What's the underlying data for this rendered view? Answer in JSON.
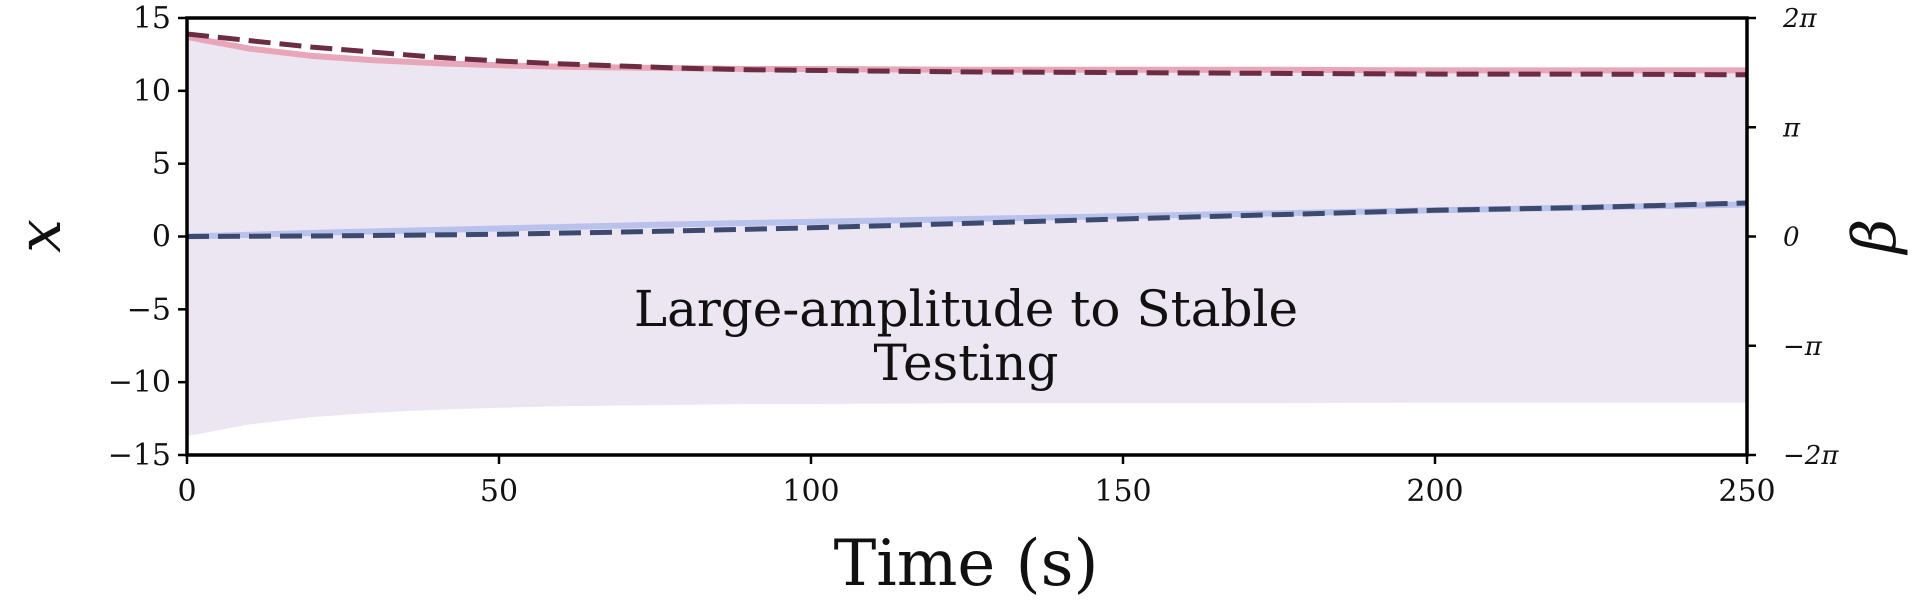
{
  "chart_data": {
    "type": "line",
    "title": "",
    "xlabel": "Time (s)",
    "ylabel": "x",
    "ylabel_right": "β",
    "xlim": [
      0,
      250
    ],
    "ylim": [
      -15,
      15
    ],
    "ylim_right_radians": [
      -6.2832,
      6.2832
    ],
    "x_ticks": [
      "0",
      "50",
      "100",
      "150",
      "200",
      "250"
    ],
    "y_ticks": [
      "−15",
      "−10",
      "−5",
      "0",
      "5",
      "10",
      "15"
    ],
    "y_ticks_right": [
      "−2π",
      "−π",
      "0",
      "π",
      "2π"
    ],
    "grid": false,
    "annotation": {
      "line1": "Large-amplitude to Stable",
      "line2": "Testing"
    },
    "oscillation_envelope": {
      "x": [
        0,
        5,
        10,
        20,
        30,
        40,
        50,
        60,
        70,
        80,
        90,
        100,
        125,
        150,
        175,
        200,
        225,
        250
      ],
      "upper": [
        13.7,
        13.3,
        12.9,
        12.4,
        12.1,
        11.9,
        11.75,
        11.65,
        11.6,
        11.55,
        11.5,
        11.5,
        11.45,
        11.45,
        11.45,
        11.4,
        11.4,
        11.4
      ],
      "lower": [
        -13.7,
        -13.3,
        -12.9,
        -12.4,
        -12.1,
        -11.9,
        -11.75,
        -11.65,
        -11.6,
        -11.55,
        -11.5,
        -11.5,
        -11.45,
        -11.45,
        -11.45,
        -11.4,
        -11.4,
        -11.4
      ],
      "color": "#e6dced"
    },
    "series": [
      {
        "axis": "left",
        "style": "solid",
        "color": "#e8a6b8",
        "x": [
          0,
          5,
          10,
          20,
          30,
          40,
          50,
          60,
          70,
          80,
          90,
          100,
          125,
          150,
          175,
          200,
          225,
          250
        ],
        "values": [
          13.7,
          13.3,
          12.9,
          12.4,
          12.1,
          11.9,
          11.75,
          11.65,
          11.6,
          11.55,
          11.5,
          11.5,
          11.45,
          11.45,
          11.45,
          11.4,
          11.4,
          11.4
        ]
      },
      {
        "axis": "left",
        "style": "dashed",
        "color": "#6b2d43",
        "x": [
          0,
          10,
          20,
          30,
          40,
          50,
          60,
          70,
          80,
          90,
          100,
          125,
          150,
          175,
          200,
          225,
          250
        ],
        "values": [
          13.9,
          13.45,
          13.0,
          12.65,
          12.3,
          12.05,
          11.85,
          11.7,
          11.55,
          11.45,
          11.4,
          11.3,
          11.25,
          11.2,
          11.15,
          11.15,
          11.1
        ]
      },
      {
        "axis": "left",
        "style": "solid",
        "color": "#b9c2ec",
        "x": [
          0,
          25,
          50,
          75,
          100,
          125,
          150,
          175,
          200,
          225,
          250
        ],
        "values": [
          0.0,
          0.3,
          0.55,
          0.8,
          1.0,
          1.2,
          1.4,
          1.6,
          1.8,
          2.0,
          2.2
        ]
      },
      {
        "axis": "left",
        "style": "dashed",
        "color": "#3d4a70",
        "x": [
          0,
          25,
          50,
          75,
          100,
          125,
          150,
          175,
          200,
          225,
          250
        ],
        "values": [
          0.0,
          0.05,
          0.15,
          0.35,
          0.6,
          0.9,
          1.2,
          1.5,
          1.8,
          2.0,
          2.3
        ]
      }
    ]
  }
}
